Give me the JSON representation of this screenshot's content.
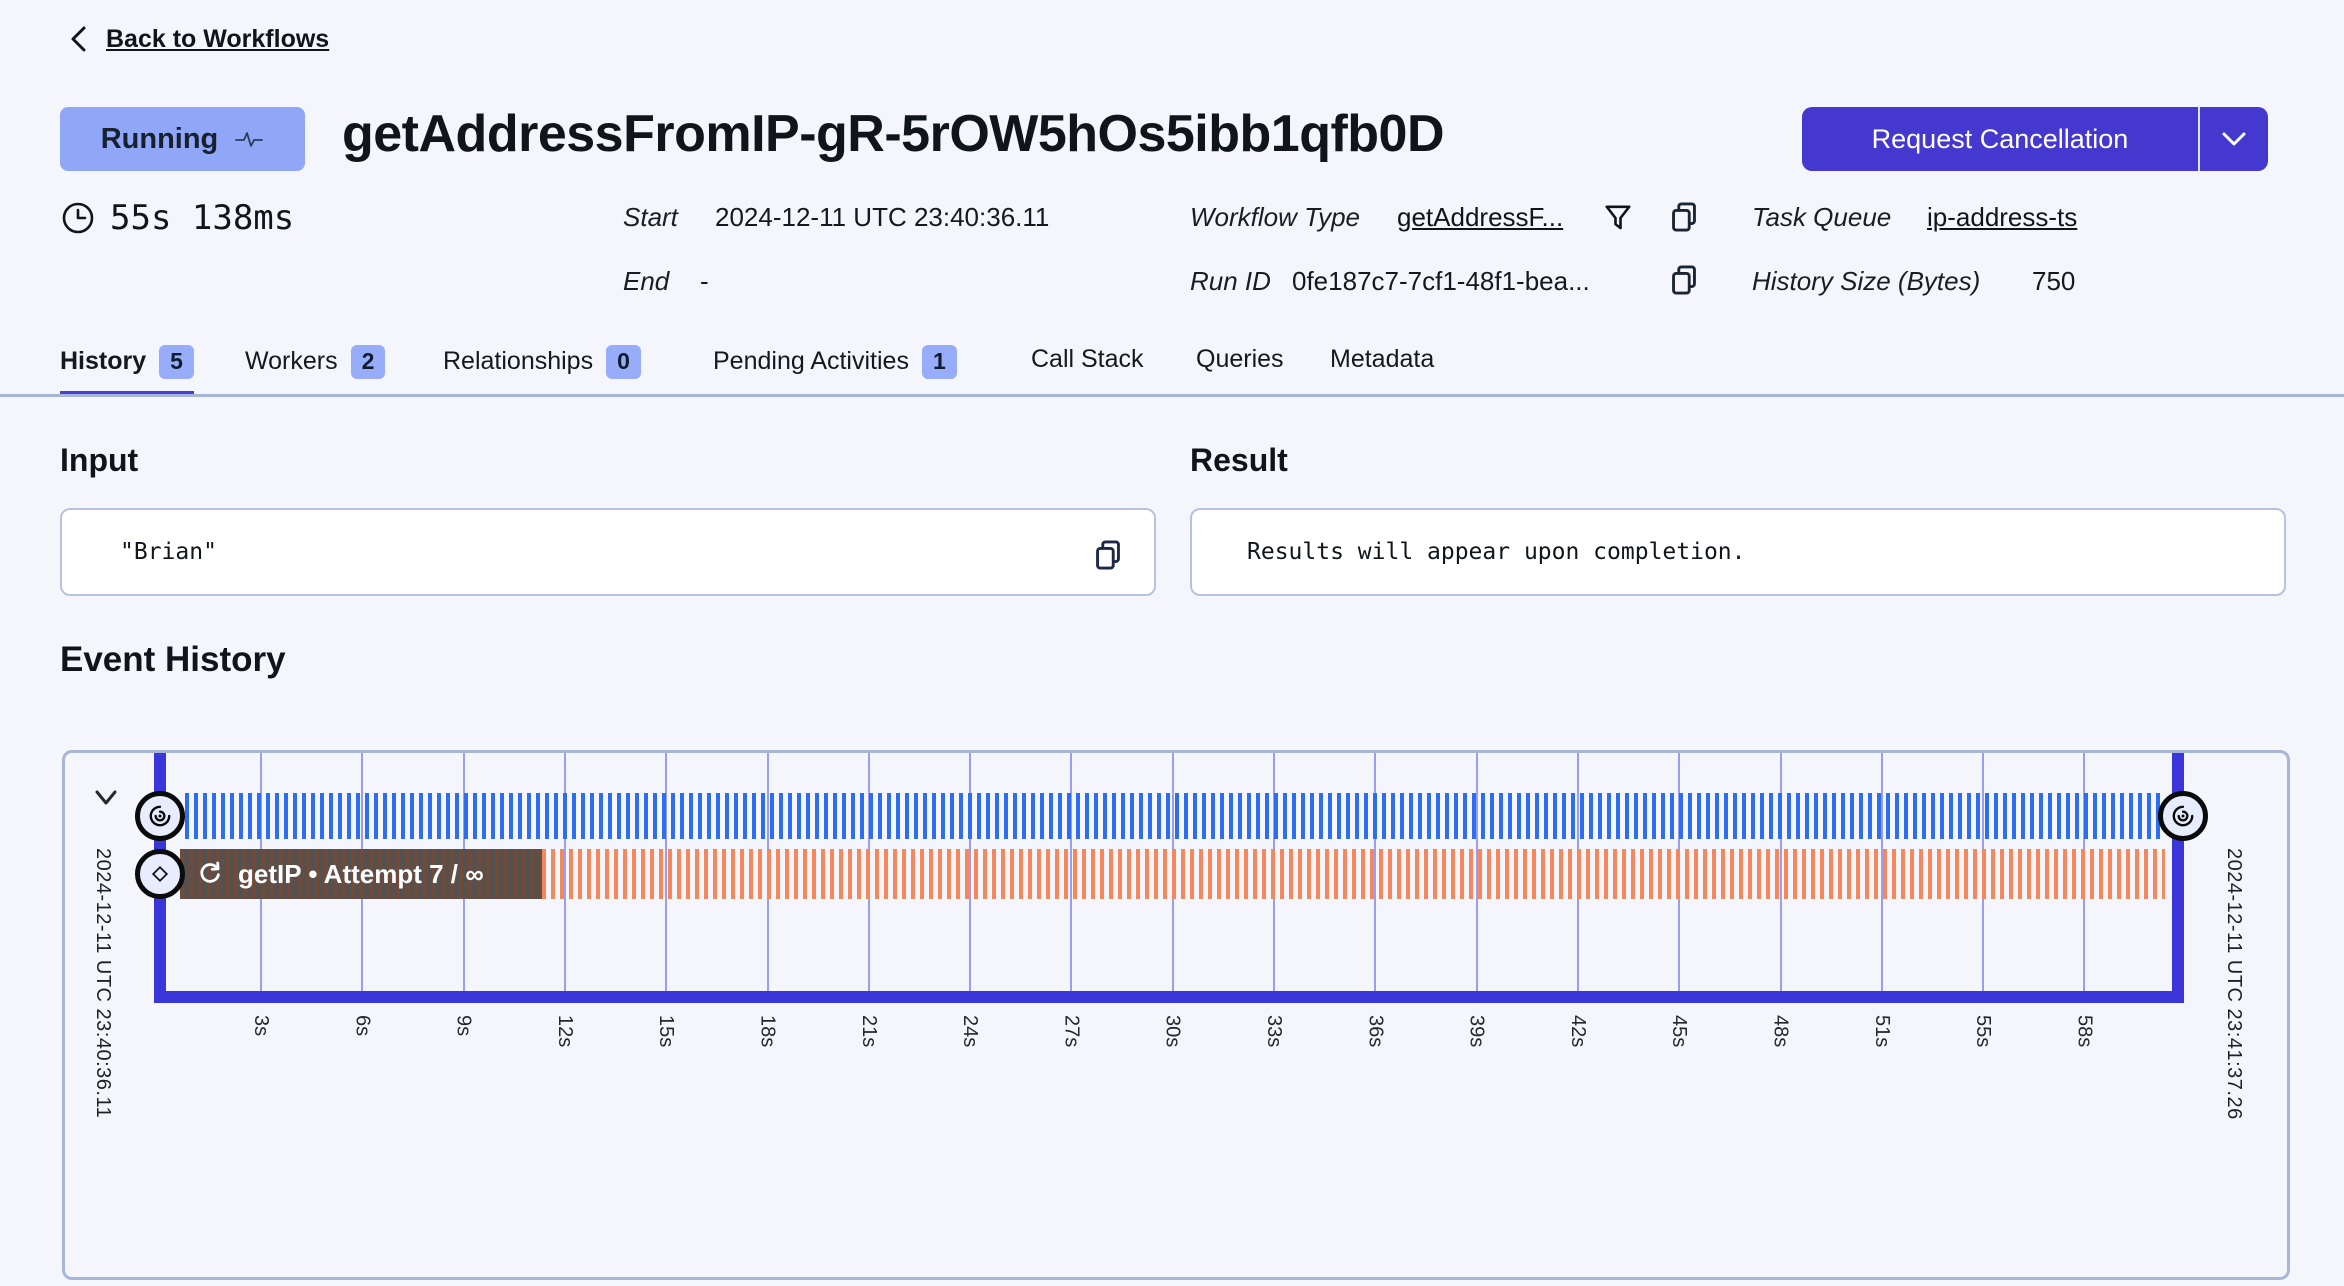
{
  "header": {
    "back_label": "Back to Workflows",
    "status_label": "Running",
    "title": "getAddressFromIP-gR-5rOW5hOs5ibb1qfb0D",
    "cancel_label": "Request Cancellation"
  },
  "meta": {
    "duration": "55s 138ms",
    "start_label": "Start",
    "start_value": "2024-12-11 UTC 23:40:36.11",
    "end_label": "End",
    "end_value": "-",
    "workflow_type_label": "Workflow Type",
    "workflow_type_value": "getAddressF...",
    "run_id_label": "Run ID",
    "run_id_value": "0fe187c7-7cf1-48f1-bea...",
    "task_queue_label": "Task Queue",
    "task_queue_value": "ip-address-ts",
    "history_size_label": "History Size (Bytes)",
    "history_size_value": "750"
  },
  "tabs": [
    {
      "label": "History",
      "badge": "5"
    },
    {
      "label": "Workers",
      "badge": "2"
    },
    {
      "label": "Relationships",
      "badge": "0"
    },
    {
      "label": "Pending Activities",
      "badge": "1"
    },
    {
      "label": "Call Stack"
    },
    {
      "label": "Queries"
    },
    {
      "label": "Metadata"
    }
  ],
  "input": {
    "title": "Input",
    "value": "\"Brian\""
  },
  "result": {
    "title": "Result",
    "value": "Results will appear upon completion."
  },
  "event_history": {
    "title": "Event History",
    "start_time": "2024-12-11 UTC 23:40:36.11",
    "end_time": "2024-12-11 UTC 23:41:37.26",
    "activity_label": "getIP • Attempt 7 / ∞",
    "ticks": [
      "3s",
      "6s",
      "9s",
      "12s",
      "15s",
      "18s",
      "21s",
      "24s",
      "27s",
      "30s",
      "33s",
      "36s",
      "39s",
      "42s",
      "45s",
      "48s",
      "51s",
      "55s",
      "58s"
    ]
  },
  "icons": {
    "back": "chevron-left",
    "status": "heartbeat",
    "duration": "clock",
    "workflow_type_filter": "funnel",
    "copy": "copy-pages",
    "cancel_menu": "chevron-down",
    "timeline_collapse": "chevron-down",
    "workflow_event": "spiral",
    "activity_event": "diamond",
    "retry": "circular-arrow"
  },
  "colors": {
    "accent": "#4438ce",
    "status_badge_bg": "#90a7f8",
    "tab_badge_bg": "#97adfa",
    "timeline_marker": "#3b36d9",
    "workflow_stripe": "#2e6cf0",
    "activity_stripe": "#f5875c",
    "gridline": "#8388ec",
    "card_border": "#b6c2e0",
    "chart_border": "#a9b5d4",
    "page_bg": "#f4f6fc"
  }
}
